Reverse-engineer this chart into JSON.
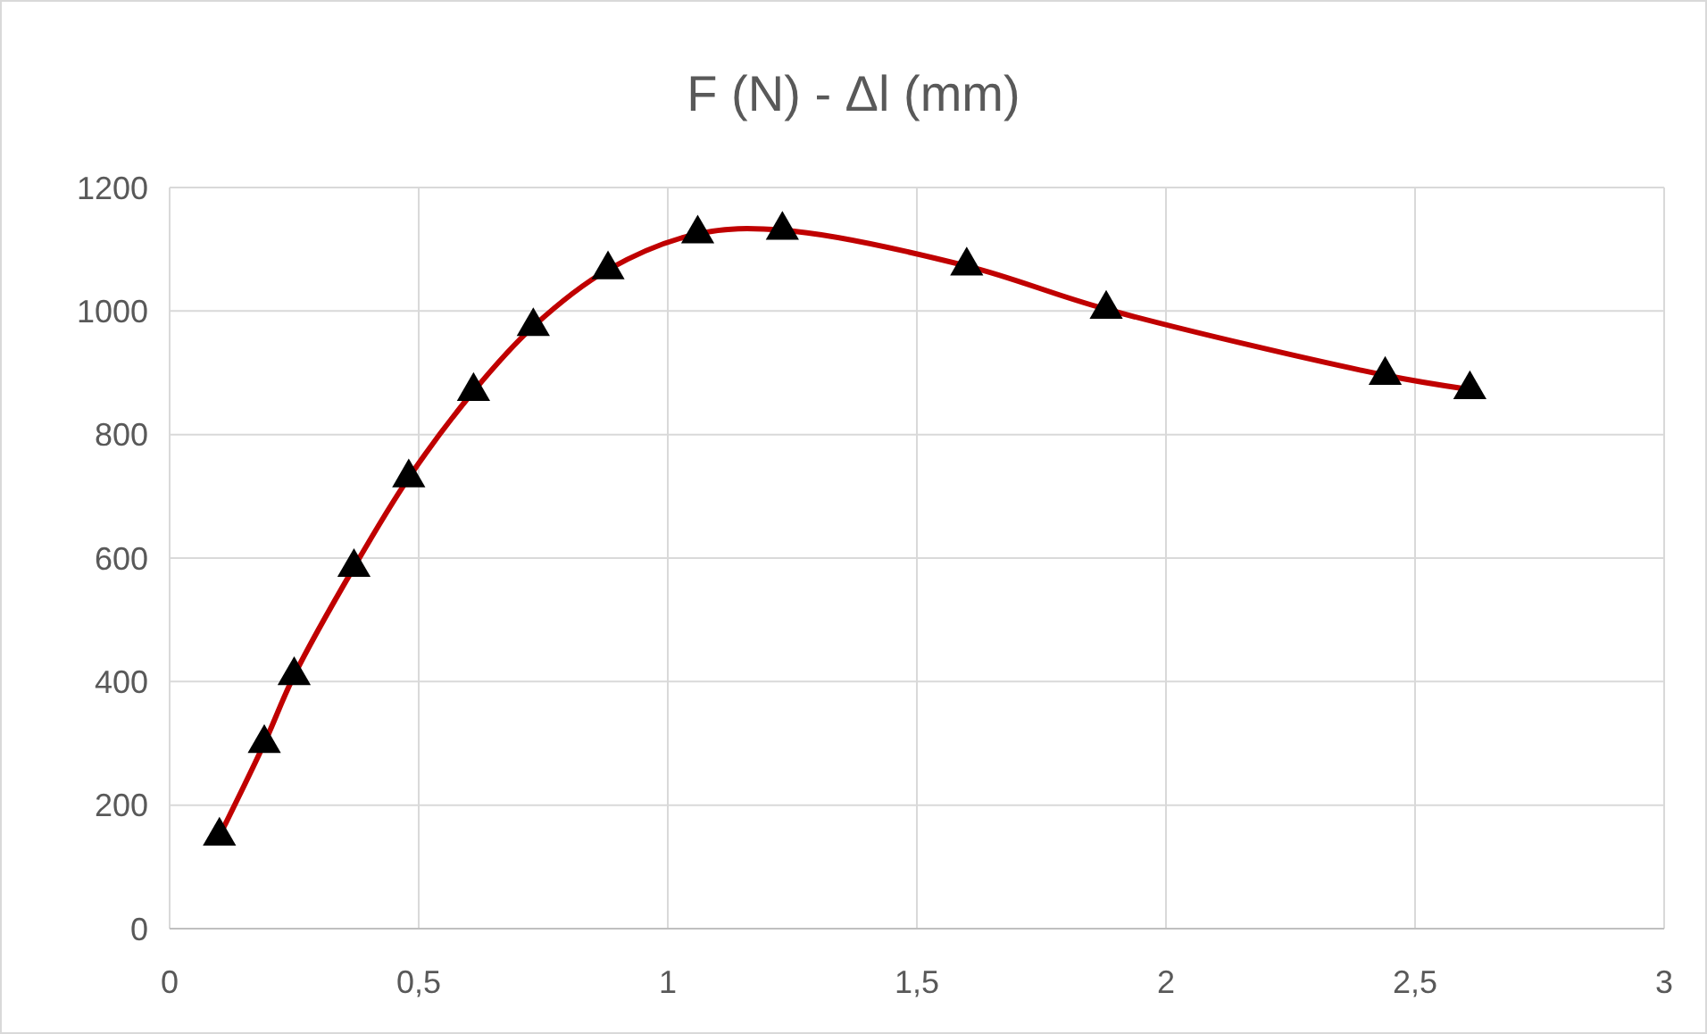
{
  "chart_data": {
    "type": "line",
    "title": "F (N) - Δl (mm)",
    "x": [
      0.1,
      0.19,
      0.25,
      0.37,
      0.48,
      0.61,
      0.73,
      0.88,
      1.06,
      1.23,
      1.6,
      1.88,
      2.44,
      2.61
    ],
    "series": [
      {
        "color": "#c00000",
        "values": [
          150,
          300,
          410,
          585,
          730,
          870,
          975,
          1067,
          1125,
          1131,
          1073,
          1003,
          896,
          873
        ]
      }
    ],
    "xlim": [
      0,
      3
    ],
    "xticks": [
      0,
      {
        "value": 0.5,
        "label": "0,5"
      },
      1,
      {
        "value": 1.5,
        "label": "1,5"
      },
      2,
      {
        "value": 2.5,
        "label": "2,5"
      },
      3
    ],
    "ylim": [
      0,
      1200
    ],
    "yticks": [
      0,
      200,
      400,
      600,
      800,
      1000,
      1200
    ],
    "grid": true,
    "marker": "triangle",
    "line_style": "solid"
  }
}
